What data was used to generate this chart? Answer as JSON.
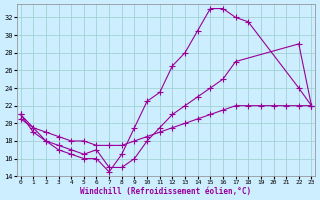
{
  "xlabel": "Windchill (Refroidissement éolien,°C)",
  "bg_color": "#cceeff",
  "line_color": "#990099",
  "grid_color": "#99cccc",
  "xmin": 0,
  "xmax": 23,
  "ymin": 14,
  "ymax": 33,
  "yticks": [
    14,
    16,
    18,
    20,
    22,
    24,
    26,
    28,
    30,
    32
  ],
  "xticks": [
    0,
    1,
    2,
    3,
    4,
    5,
    6,
    7,
    8,
    9,
    10,
    11,
    12,
    13,
    14,
    15,
    16,
    17,
    18,
    19,
    20,
    21,
    22,
    23
  ],
  "curve1_x": [
    0,
    1,
    2,
    3,
    4,
    5,
    6,
    7,
    8,
    9,
    10,
    11,
    12,
    13,
    14,
    15,
    16,
    17,
    18,
    22,
    23
  ],
  "curve1_y": [
    21,
    19,
    18,
    17,
    16.5,
    16,
    16,
    14.5,
    16.5,
    19.5,
    22.5,
    23.5,
    26.5,
    28,
    30.5,
    33,
    33,
    32,
    31.5,
    24,
    22
  ],
  "curve2_x": [
    0,
    1,
    2,
    3,
    4,
    5,
    6,
    7,
    8,
    9,
    10,
    11,
    12,
    13,
    14,
    15,
    16,
    17,
    22,
    23
  ],
  "curve2_y": [
    21,
    19.5,
    18,
    17.5,
    17,
    16.5,
    17,
    15,
    15,
    16,
    18,
    19.5,
    21,
    22,
    23,
    24,
    25,
    27,
    29,
    22
  ],
  "curve3_x": [
    0,
    1,
    2,
    3,
    4,
    5,
    6,
    7,
    8,
    9,
    10,
    11,
    12,
    13,
    14,
    15,
    16,
    17,
    18,
    19,
    20,
    21,
    22,
    23
  ],
  "curve3_y": [
    20.5,
    19.5,
    19,
    18.5,
    18,
    18,
    17.5,
    17.5,
    17.5,
    18,
    18.5,
    19,
    19.5,
    20,
    20.5,
    21,
    21.5,
    22,
    22,
    22,
    22,
    22,
    22,
    22
  ],
  "marker_size": 4,
  "line_width": 0.8
}
